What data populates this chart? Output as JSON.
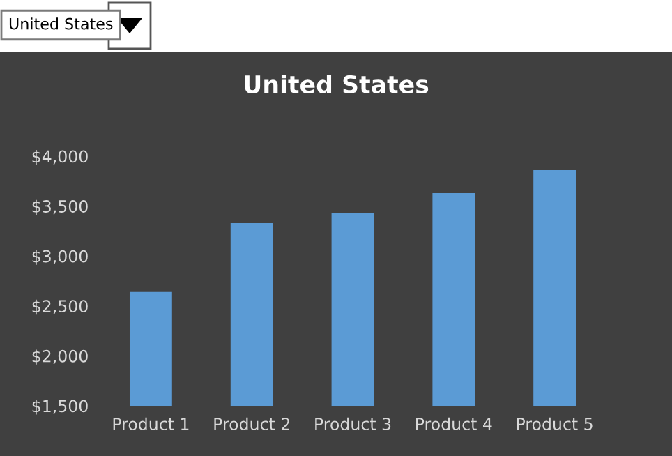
{
  "chart_data": {
    "type": "bar",
    "title": "United States",
    "annotations": [
      "United States"
    ],
    "categories": [
      "Product 1",
      "Product 2",
      "Product 3",
      "Product 4",
      "Product 5"
    ],
    "values": [
      2640,
      3330,
      3430,
      3630,
      3860
    ],
    "color": "#5b9bd5",
    "ylim": [
      1500,
      4000
    ],
    "yticks": [
      {
        "value": 1500,
        "label": "$1,500"
      },
      {
        "value": 2000,
        "label": "$2,000"
      },
      {
        "value": 2500,
        "label": "$2,500"
      },
      {
        "value": 3000,
        "label": "$3,000"
      },
      {
        "value": 3500,
        "label": "$3,500"
      },
      {
        "value": 4000,
        "label": "$4,000"
      }
    ],
    "grid": false,
    "legend": false
  }
}
